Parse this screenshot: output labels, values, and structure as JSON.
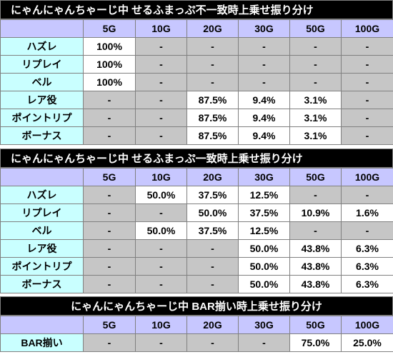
{
  "tables": [
    {
      "title": "にゃんにゃんちゃーじ中 せるふまっぷ不一致時上乗せ振り分け",
      "columns": [
        "5G",
        "10G",
        "20G",
        "30G",
        "50G",
        "100G"
      ],
      "rows": [
        {
          "label": "ハズレ",
          "cells": [
            "100%",
            "-",
            "-",
            "-",
            "-",
            "-"
          ]
        },
        {
          "label": "リプレイ",
          "cells": [
            "100%",
            "-",
            "-",
            "-",
            "-",
            "-"
          ]
        },
        {
          "label": "ベル",
          "cells": [
            "100%",
            "-",
            "-",
            "-",
            "-",
            "-"
          ]
        },
        {
          "label": "レア役",
          "cells": [
            "-",
            "-",
            "87.5%",
            "9.4%",
            "3.1%",
            "-"
          ]
        },
        {
          "label": "ポイントリプ",
          "cells": [
            "-",
            "-",
            "87.5%",
            "9.4%",
            "3.1%",
            "-"
          ]
        },
        {
          "label": "ボーナス",
          "cells": [
            "-",
            "-",
            "87.5%",
            "9.4%",
            "3.1%",
            "-"
          ]
        }
      ]
    },
    {
      "title": "にゃんにゃんちゃーじ中 せるふまっぷ一致時上乗せ振り分け",
      "columns": [
        "5G",
        "10G",
        "20G",
        "30G",
        "50G",
        "100G"
      ],
      "rows": [
        {
          "label": "ハズレ",
          "cells": [
            "-",
            "50.0%",
            "37.5%",
            "12.5%",
            "-",
            "-"
          ]
        },
        {
          "label": "リプレイ",
          "cells": [
            "-",
            "-",
            "50.0%",
            "37.5%",
            "10.9%",
            "1.6%"
          ]
        },
        {
          "label": "ベル",
          "cells": [
            "-",
            "50.0%",
            "37.5%",
            "12.5%",
            "-",
            "-"
          ]
        },
        {
          "label": "レア役",
          "cells": [
            "-",
            "-",
            "-",
            "50.0%",
            "43.8%",
            "6.3%"
          ]
        },
        {
          "label": "ポイントリプ",
          "cells": [
            "-",
            "-",
            "-",
            "50.0%",
            "43.8%",
            "6.3%"
          ]
        },
        {
          "label": "ボーナス",
          "cells": [
            "-",
            "-",
            "-",
            "50.0%",
            "43.8%",
            "6.3%"
          ]
        }
      ]
    },
    {
      "title": "にゃんにゃんちゃーじ中 BAR揃い時上乗せ振り分け",
      "columns": [
        "5G",
        "10G",
        "20G",
        "30G",
        "50G",
        "100G"
      ],
      "rows": [
        {
          "label": "BAR揃い",
          "cells": [
            "-",
            "-",
            "-",
            "-",
            "75.0%",
            "25.0%"
          ]
        }
      ]
    }
  ],
  "colors": {
    "title_bg": "#000000",
    "header_bg": "#c7c7ff",
    "rowhead_bg": "#c9ffff",
    "empty_cell_bg": "#c6c6c6",
    "value_cell_bg": "#ffffff"
  }
}
